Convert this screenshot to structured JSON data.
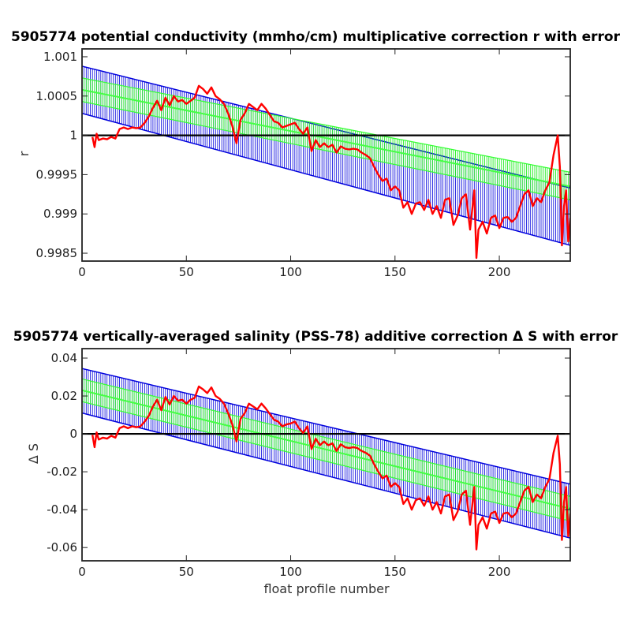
{
  "chart_data": [
    {
      "type": "line",
      "title": "5905774 potential conductivity (mmho/cm) multiplicative correction r with error",
      "xlabel": "",
      "ylabel": "r",
      "xlim": [
        0,
        234
      ],
      "ylim": [
        0.9984,
        1.0011
      ],
      "x_ticks": [
        "0",
        "50",
        "100",
        "150",
        "200"
      ],
      "y_ticks": [
        "0.9985",
        "0.999",
        "0.9995",
        "1",
        "1.0005",
        "1.001"
      ],
      "reference_line": 1.0,
      "fit": {
        "x": [
          0,
          234
        ],
        "y": [
          1.00058,
          0.99935
        ]
      },
      "fit_2sigma_band": {
        "x": [
          0,
          234
        ],
        "upper": [
          1.00088,
          0.99933
        ],
        "lower": [
          1.00028,
          0.9986
        ]
      },
      "fit_1sigma_band": {
        "x": [
          0,
          234
        ],
        "upper": [
          1.00073,
          0.99953
        ],
        "lower": [
          1.00043,
          0.99918
        ]
      },
      "series": [
        {
          "color": "#ff0000",
          "x": [
            5,
            6,
            7,
            8,
            10,
            12,
            14,
            16,
            18,
            20,
            22,
            24,
            26,
            28,
            30,
            32,
            34,
            36,
            38,
            40,
            42,
            44,
            46,
            48,
            50,
            52,
            54,
            56,
            58,
            60,
            62,
            64,
            66,
            68,
            70,
            72,
            74,
            76,
            78,
            80,
            82,
            84,
            86,
            88,
            90,
            92,
            94,
            96,
            98,
            100,
            102,
            104,
            106,
            108,
            110,
            112,
            114,
            116,
            118,
            120,
            122,
            124,
            126,
            128,
            130,
            132,
            134,
            136,
            138,
            140,
            142,
            144,
            146,
            148,
            150,
            152,
            154,
            156,
            158,
            160,
            162,
            164,
            166,
            168,
            170,
            172,
            174,
            176,
            178,
            180,
            182,
            184,
            186,
            188,
            189,
            190,
            192,
            194,
            196,
            198,
            200,
            202,
            204,
            206,
            208,
            210,
            212,
            214,
            216,
            218,
            220,
            222,
            224,
            226,
            228,
            229,
            230,
            231,
            232,
            233,
            234
          ],
          "y": [
            0.99998,
            0.99985,
            1.00002,
            0.99994,
            0.99996,
            0.99995,
            0.99998,
            0.99996,
            1.00008,
            1.0001,
            1.00008,
            1.0001,
            1.00009,
            1.0001,
            1.00016,
            1.00024,
            1.00035,
            1.00044,
            1.00032,
            1.00048,
            1.00038,
            1.0005,
            1.00043,
            1.00045,
            1.0004,
            1.00044,
            1.00048,
            1.00063,
            1.00059,
            1.00053,
            1.00061,
            1.0005,
            1.00046,
            1.0004,
            1.00028,
            1.00012,
            0.9999,
            1.0002,
            1.00028,
            1.0004,
            1.00036,
            1.00032,
            1.0004,
            1.00034,
            1.00026,
            1.00018,
            1.00016,
            1.0001,
            1.00012,
            1.00014,
            1.00016,
            1.00008,
            1.00002,
            1.0001,
            0.9998,
            0.99994,
            0.99985,
            0.9999,
            0.99985,
            0.99988,
            0.99978,
            0.99986,
            0.99983,
            0.99982,
            0.99983,
            0.99982,
            0.99978,
            0.99975,
            0.99971,
            0.9996,
            0.9995,
            0.99942,
            0.99945,
            0.9993,
            0.99935,
            0.9993,
            0.99908,
            0.99915,
            0.999,
            0.99913,
            0.99915,
            0.99905,
            0.99918,
            0.999,
            0.9991,
            0.99895,
            0.99918,
            0.9992,
            0.99886,
            0.99898,
            0.9992,
            0.99925,
            0.9988,
            0.9993,
            0.99844,
            0.9988,
            0.9989,
            0.99875,
            0.99895,
            0.99898,
            0.99882,
            0.99895,
            0.99896,
            0.9989,
            0.99895,
            0.9991,
            0.99925,
            0.9993,
            0.9991,
            0.9992,
            0.99915,
            0.9993,
            0.9994,
            0.99975,
            1.0,
            0.9996,
            0.9986,
            0.9991,
            0.9993,
            0.99865,
            0.99895
          ]
        }
      ]
    },
    {
      "type": "line",
      "title": "5905774 vertically-averaged salinity (PSS-78) additive correction Δ S with error",
      "xlabel": "float profile number",
      "ylabel": "Δ S",
      "xlim": [
        0,
        234
      ],
      "ylim": [
        -0.067,
        0.045
      ],
      "x_ticks": [
        "0",
        "50",
        "100",
        "150",
        "200"
      ],
      "y_ticks": [
        "-0.06",
        "-0.04",
        "-0.02",
        "0",
        "0.02",
        "0.04"
      ],
      "reference_line": 0,
      "fit": {
        "x": [
          0,
          234
        ],
        "y": [
          0.023,
          -0.0395
        ]
      },
      "fit_2sigma_band": {
        "x": [
          0,
          234
        ],
        "upper": [
          0.0345,
          -0.0265
        ],
        "lower": [
          0.011,
          -0.055
        ]
      },
      "fit_1sigma_band": {
        "x": [
          0,
          234
        ],
        "upper": [
          0.029,
          -0.033
        ],
        "lower": [
          0.017,
          -0.046
        ]
      },
      "series": [
        {
          "color": "#ff0000",
          "x": [
            5,
            6,
            7,
            8,
            10,
            12,
            14,
            16,
            18,
            20,
            22,
            24,
            26,
            28,
            30,
            32,
            34,
            36,
            38,
            40,
            42,
            44,
            46,
            48,
            50,
            52,
            54,
            56,
            58,
            60,
            62,
            64,
            66,
            68,
            70,
            72,
            74,
            76,
            78,
            80,
            82,
            84,
            86,
            88,
            90,
            92,
            94,
            96,
            98,
            100,
            102,
            104,
            106,
            108,
            110,
            112,
            114,
            116,
            118,
            120,
            122,
            124,
            126,
            128,
            130,
            132,
            134,
            136,
            138,
            140,
            142,
            144,
            146,
            148,
            150,
            152,
            154,
            156,
            158,
            160,
            162,
            164,
            166,
            168,
            170,
            172,
            174,
            176,
            178,
            180,
            182,
            184,
            186,
            188,
            189,
            190,
            192,
            194,
            196,
            198,
            200,
            202,
            204,
            206,
            208,
            210,
            212,
            214,
            216,
            218,
            220,
            222,
            224,
            226,
            228,
            229,
            230,
            231,
            232,
            233,
            234
          ],
          "y": [
            -0.0005,
            -0.007,
            0.0008,
            -0.003,
            -0.002,
            -0.0025,
            -0.001,
            -0.002,
            0.003,
            0.004,
            0.003,
            0.004,
            0.0035,
            0.004,
            0.0065,
            0.0095,
            0.0145,
            0.018,
            0.0125,
            0.0195,
            0.0155,
            0.02,
            0.0175,
            0.018,
            0.016,
            0.018,
            0.019,
            0.025,
            0.0235,
            0.0215,
            0.0245,
            0.02,
            0.0185,
            0.016,
            0.011,
            0.005,
            -0.004,
            0.008,
            0.011,
            0.016,
            0.0145,
            0.013,
            0.016,
            0.0135,
            0.0105,
            0.0075,
            0.0065,
            0.004,
            0.005,
            0.0055,
            0.0065,
            0.003,
            0.0005,
            0.004,
            -0.008,
            -0.0025,
            -0.006,
            -0.004,
            -0.006,
            -0.005,
            -0.009,
            -0.0055,
            -0.007,
            -0.0075,
            -0.007,
            -0.0075,
            -0.009,
            -0.01,
            -0.0115,
            -0.016,
            -0.02,
            -0.0235,
            -0.022,
            -0.028,
            -0.026,
            -0.028,
            -0.037,
            -0.034,
            -0.04,
            -0.035,
            -0.034,
            -0.038,
            -0.033,
            -0.04,
            -0.036,
            -0.042,
            -0.033,
            -0.032,
            -0.0455,
            -0.041,
            -0.032,
            -0.03,
            -0.048,
            -0.028,
            -0.061,
            -0.048,
            -0.044,
            -0.05,
            -0.042,
            -0.041,
            -0.047,
            -0.042,
            -0.0415,
            -0.044,
            -0.042,
            -0.036,
            -0.03,
            -0.028,
            -0.036,
            -0.032,
            -0.034,
            -0.028,
            -0.024,
            -0.01,
            -0.001,
            -0.016,
            -0.056,
            -0.036,
            -0.028,
            -0.054,
            -0.042
          ]
        }
      ]
    }
  ]
}
